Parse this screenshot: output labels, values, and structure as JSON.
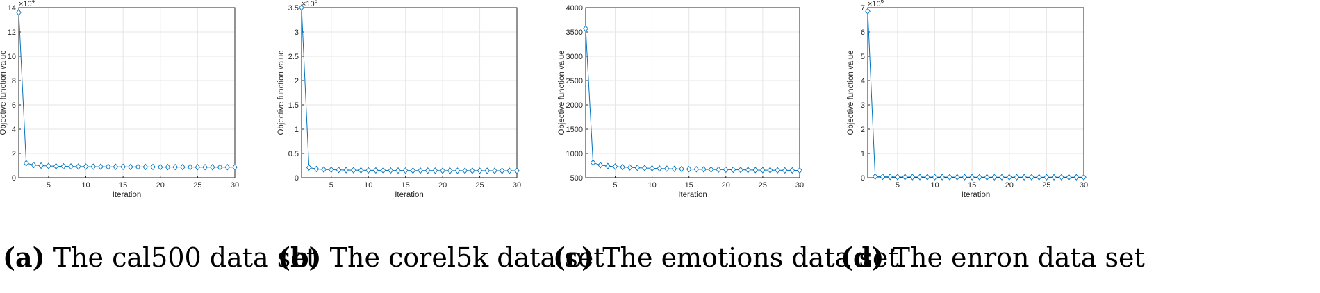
{
  "chart_data": [
    {
      "type": "line",
      "tag": "(a)",
      "caption": "The cal500 data set",
      "xlabel": "Iteration",
      "ylabel": "Objective function value",
      "exponent_label": "×10",
      "exponent": "4",
      "xlim": [
        1,
        30
      ],
      "ylim": [
        0,
        14
      ],
      "xticks": [
        5,
        10,
        15,
        20,
        25,
        30
      ],
      "yticks": [
        0,
        2,
        4,
        6,
        8,
        10,
        12,
        14
      ],
      "grid": true,
      "color": "#0072BD",
      "series": [
        {
          "x": [
            1,
            2,
            3,
            4,
            5,
            6,
            7,
            8,
            9,
            10,
            11,
            12,
            13,
            14,
            15,
            16,
            17,
            18,
            19,
            20,
            21,
            22,
            23,
            24,
            25,
            26,
            27,
            28,
            29,
            30
          ],
          "values": [
            13.6,
            1.2,
            1.05,
            1.0,
            0.97,
            0.95,
            0.94,
            0.93,
            0.92,
            0.92,
            0.91,
            0.91,
            0.9,
            0.9,
            0.9,
            0.89,
            0.89,
            0.89,
            0.89,
            0.88,
            0.88,
            0.88,
            0.88,
            0.88,
            0.87,
            0.87,
            0.87,
            0.87,
            0.87,
            0.87
          ]
        }
      ]
    },
    {
      "type": "line",
      "tag": "(b)",
      "caption": "The corel5k data set",
      "xlabel": "Iteration",
      "ylabel": "Objective function value",
      "exponent_label": "×10",
      "exponent": "5",
      "xlim": [
        1,
        30
      ],
      "ylim": [
        0,
        3.5
      ],
      "xticks": [
        5,
        10,
        15,
        20,
        25,
        30
      ],
      "yticks": [
        0,
        0.5,
        1,
        1.5,
        2,
        2.5,
        3,
        3.5
      ],
      "grid": true,
      "color": "#0072BD",
      "series": [
        {
          "x": [
            1,
            2,
            3,
            4,
            5,
            6,
            7,
            8,
            9,
            10,
            11,
            12,
            13,
            14,
            15,
            16,
            17,
            18,
            19,
            20,
            21,
            22,
            23,
            24,
            25,
            26,
            27,
            28,
            29,
            30
          ],
          "values": [
            3.5,
            0.21,
            0.18,
            0.17,
            0.165,
            0.16,
            0.157,
            0.155,
            0.153,
            0.152,
            0.151,
            0.15,
            0.149,
            0.148,
            0.148,
            0.147,
            0.147,
            0.146,
            0.146,
            0.145,
            0.145,
            0.145,
            0.144,
            0.144,
            0.144,
            0.143,
            0.143,
            0.143,
            0.142,
            0.142
          ]
        }
      ]
    },
    {
      "type": "line",
      "tag": "(c)",
      "caption": "The emotions data set",
      "xlabel": "Iteration",
      "ylabel": "Objective function value",
      "exponent_label": "",
      "exponent": "",
      "xlim": [
        1,
        30
      ],
      "ylim": [
        500,
        4000
      ],
      "xticks": [
        5,
        10,
        15,
        20,
        25,
        30
      ],
      "yticks": [
        500,
        1000,
        1500,
        2000,
        2500,
        3000,
        3500,
        4000
      ],
      "grid": true,
      "color": "#0072BD",
      "series": [
        {
          "x": [
            1,
            2,
            3,
            4,
            5,
            6,
            7,
            8,
            9,
            10,
            11,
            12,
            13,
            14,
            15,
            16,
            17,
            18,
            19,
            20,
            21,
            22,
            23,
            24,
            25,
            26,
            27,
            28,
            29,
            30
          ],
          "values": [
            3570,
            810,
            760,
            740,
            730,
            720,
            712,
            705,
            700,
            695,
            690,
            686,
            683,
            680,
            677,
            675,
            672,
            670,
            668,
            666,
            664,
            662,
            660,
            658,
            656,
            655,
            653,
            652,
            651,
            650
          ]
        }
      ]
    },
    {
      "type": "line",
      "tag": "(d)",
      "caption": "The enron data set",
      "xlabel": "Iteration",
      "ylabel": "Objective function value",
      "exponent_label": "×10",
      "exponent": "6",
      "xlim": [
        1,
        30
      ],
      "ylim": [
        0,
        7
      ],
      "xticks": [
        5,
        10,
        15,
        20,
        25,
        30
      ],
      "yticks": [
        0,
        1,
        2,
        3,
        4,
        5,
        6,
        7
      ],
      "grid": true,
      "color": "#0072BD",
      "series": [
        {
          "x": [
            1,
            2,
            3,
            4,
            5,
            6,
            7,
            8,
            9,
            10,
            11,
            12,
            13,
            14,
            15,
            16,
            17,
            18,
            19,
            20,
            21,
            22,
            23,
            24,
            25,
            26,
            27,
            28,
            29,
            30
          ],
          "values": [
            6.85,
            0.05,
            0.04,
            0.035,
            0.03,
            0.03,
            0.028,
            0.027,
            0.026,
            0.025,
            0.025,
            0.024,
            0.024,
            0.023,
            0.023,
            0.023,
            0.022,
            0.022,
            0.022,
            0.021,
            0.021,
            0.021,
            0.021,
            0.02,
            0.02,
            0.02,
            0.02,
            0.02,
            0.02,
            0.02
          ]
        }
      ]
    }
  ]
}
